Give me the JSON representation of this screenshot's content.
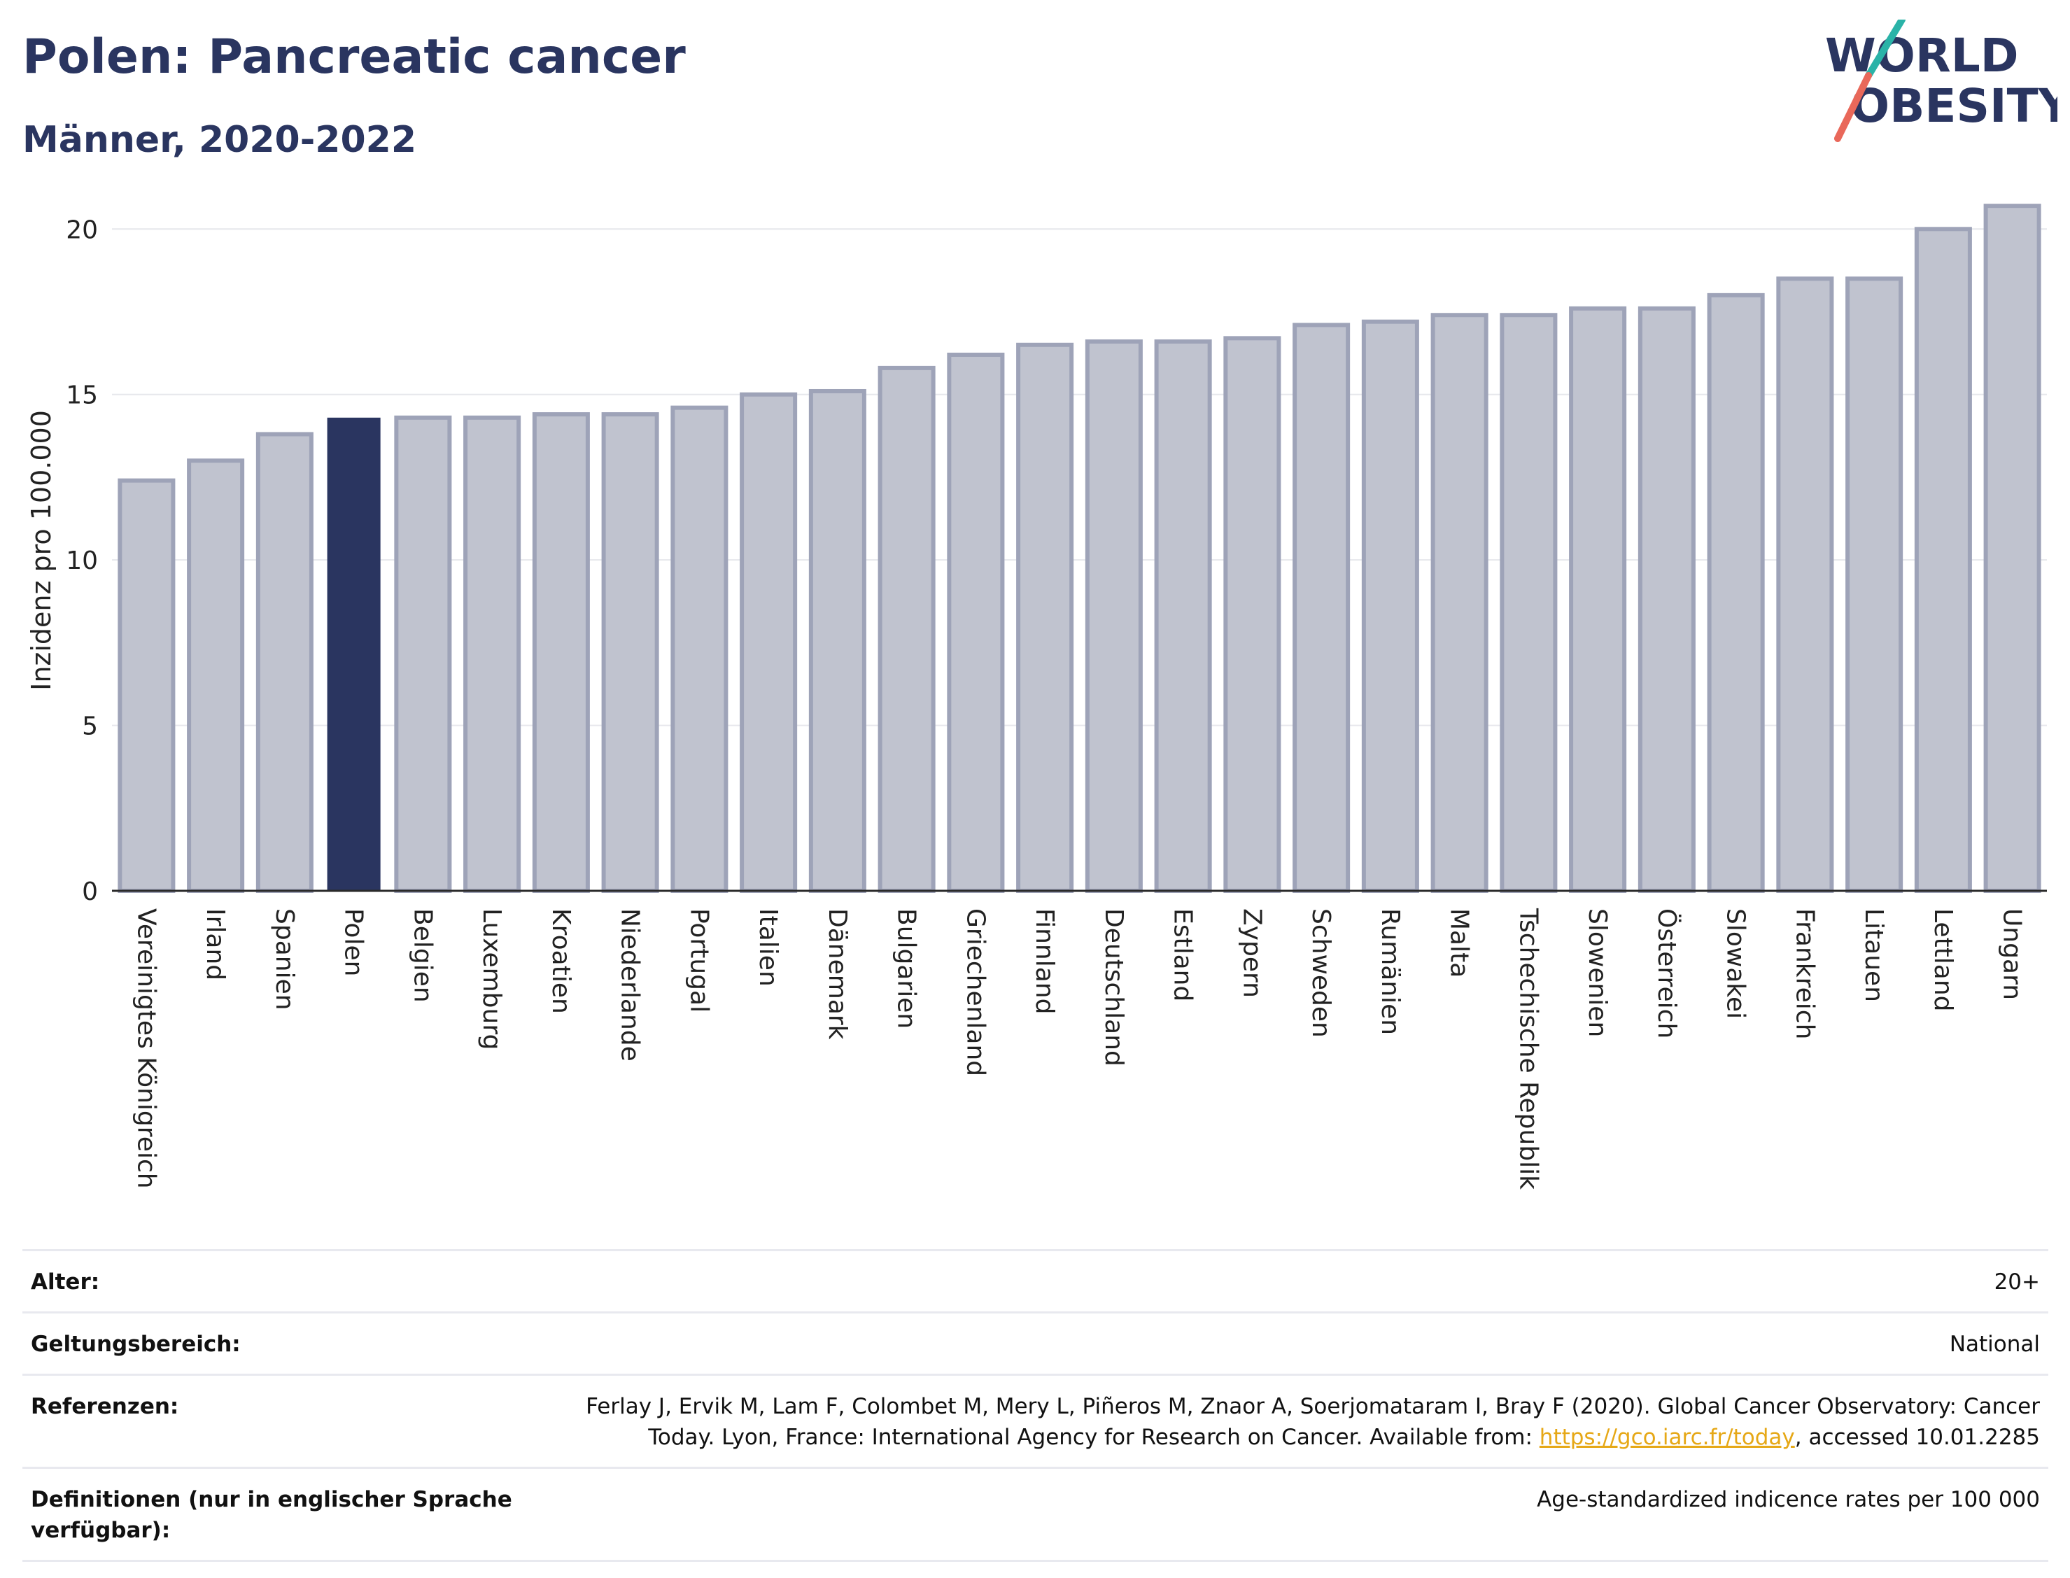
{
  "header": {
    "title": "Polen: Pancreatic cancer",
    "subtitle": "Männer, 2020-2022"
  },
  "logo": {
    "line1": "WORLD",
    "line2": "OBESITY",
    "slash_color_top": "#2ab3a8",
    "slash_color_bottom": "#e9685a"
  },
  "colors": {
    "bar_default": "#c0c3cf",
    "bar_default_stroke": "#9ea3b8",
    "bar_highlight": "#2a3560",
    "grid": "#e6e7ec",
    "axis": "#2a2a2a"
  },
  "chart_data": {
    "type": "bar",
    "title": "Polen: Pancreatic cancer",
    "subtitle": "Männer, 2020-2022",
    "xlabel": "",
    "ylabel": "Inzidenz pro 100.000",
    "ylim": [
      0,
      21
    ],
    "yticks": [
      0,
      5,
      10,
      15,
      20
    ],
    "grid": true,
    "highlight": "Polen",
    "categories": [
      "Vereinigtes Königreich",
      "Irland",
      "Spanien",
      "Polen",
      "Belgien",
      "Luxemburg",
      "Kroatien",
      "Niederlande",
      "Portugal",
      "Italien",
      "Dänemark",
      "Bulgarien",
      "Griechenland",
      "Finnland",
      "Deutschland",
      "Estland",
      "Zypern",
      "Schweden",
      "Rumänien",
      "Malta",
      "Tschechische Republik",
      "Slowenien",
      "Österreich",
      "Slowakei",
      "Frankreich",
      "Litauen",
      "Lettland",
      "Ungarn"
    ],
    "values": [
      12.4,
      13.0,
      13.8,
      14.3,
      14.3,
      14.3,
      14.4,
      14.4,
      14.6,
      15.0,
      15.1,
      15.8,
      16.2,
      16.5,
      16.6,
      16.6,
      16.7,
      17.1,
      17.2,
      17.4,
      17.4,
      17.6,
      17.6,
      18.0,
      18.5,
      18.5,
      20.0,
      20.7
    ]
  },
  "meta": {
    "age_label": "Alter:",
    "age_value": "20+",
    "scope_label": "Geltungsbereich:",
    "scope_value": "National",
    "ref_label": "Referenzen:",
    "ref_text_before": "Ferlay J, Ervik M, Lam F, Colombet M, Mery L, Piñeros M, Znaor A, Soerjomataram I, Bray F (2020). Global Cancer Observatory: Cancer Today. Lyon, France: International Agency for Research on Cancer. Available from: ",
    "ref_link": "https://gco.iarc.fr/today",
    "ref_text_after": ", accessed 10.01.2285",
    "def_label": "Definitionen (nur in englischer Sprache verfügbar):",
    "def_value": "Age-standardized indicence rates per 100 000"
  }
}
